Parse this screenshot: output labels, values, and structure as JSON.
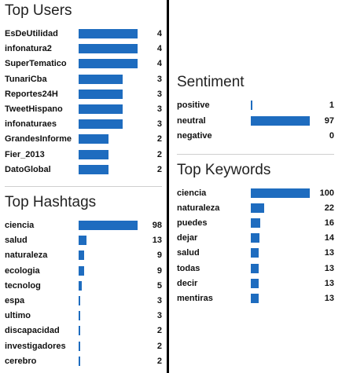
{
  "top_users": {
    "title": "Top Users",
    "items": [
      {
        "label": "EsDeUtilidad",
        "value": 4
      },
      {
        "label": "infonatura2",
        "value": 4
      },
      {
        "label": "SuperTematico",
        "value": 4
      },
      {
        "label": "TunariCba",
        "value": 3
      },
      {
        "label": "Reportes24H",
        "value": 3
      },
      {
        "label": "TweetHispano",
        "value": 3
      },
      {
        "label": "infonaturaes",
        "value": 3
      },
      {
        "label": "GrandesInforme",
        "value": 2
      },
      {
        "label": "Fier_2013",
        "value": 2
      },
      {
        "label": "DatoGlobal",
        "value": 2
      }
    ]
  },
  "top_hashtags": {
    "title": "Top Hashtags",
    "items": [
      {
        "label": "ciencia",
        "value": 98
      },
      {
        "label": "salud",
        "value": 13
      },
      {
        "label": "naturaleza",
        "value": 9
      },
      {
        "label": "ecologia",
        "value": 9
      },
      {
        "label": "tecnolog",
        "value": 5
      },
      {
        "label": "espa",
        "value": 3
      },
      {
        "label": "ultimo",
        "value": 3
      },
      {
        "label": "discapacidad",
        "value": 2
      },
      {
        "label": "investigadores",
        "value": 2
      },
      {
        "label": "cerebro",
        "value": 2
      }
    ]
  },
  "sentiment": {
    "title": "Sentiment",
    "items": [
      {
        "label": "positive",
        "value": 1
      },
      {
        "label": "neutral",
        "value": 97
      },
      {
        "label": "negative",
        "value": 0
      }
    ]
  },
  "top_keywords": {
    "title": "Top Keywords",
    "items": [
      {
        "label": "ciencia",
        "value": 100
      },
      {
        "label": "naturaleza",
        "value": 22
      },
      {
        "label": "puedes",
        "value": 16
      },
      {
        "label": "dejar",
        "value": 14
      },
      {
        "label": "salud",
        "value": 13
      },
      {
        "label": "todas",
        "value": 13
      },
      {
        "label": "decir",
        "value": 13
      },
      {
        "label": "mentiras",
        "value": 13
      }
    ]
  },
  "bar_color": "#1e6cbf"
}
